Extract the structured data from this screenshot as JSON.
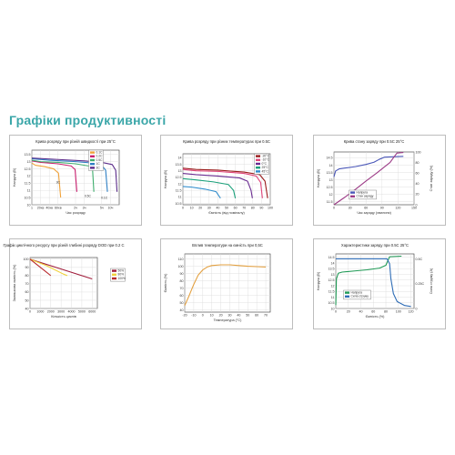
{
  "page": {
    "title": "Графіки продуктивності"
  },
  "chart_data": [
    {
      "id": "p1",
      "type": "line",
      "title": "Крива розряду при різній швидкості при 25°C",
      "xlabel": "Час розряду",
      "ylabel": "Напруга (В)",
      "x_tick_labels": [
        "1",
        "20хв",
        "40хв",
        "60хв",
        "2ч",
        "3ч",
        "5ч",
        "10ч"
      ],
      "x_tick_index": [
        0,
        1,
        2,
        3,
        5,
        6,
        8,
        9
      ],
      "y_ticks": [
        10.0,
        10.5,
        11.0,
        11.5,
        12.0,
        12.5,
        13.0,
        13.5
      ],
      "ylim": [
        10.0,
        13.8
      ],
      "xlim": [
        0,
        10
      ],
      "legend": [
        "0.1C",
        "0.2C",
        "0.5C",
        "1C",
        "3C"
      ],
      "annotations": [
        {
          "text": "3C",
          "x": 3.0,
          "y": 11.5
        },
        {
          "text": "0.5C",
          "x": 6.4,
          "y": 10.55
        },
        {
          "text": "0.1C",
          "x": 8.3,
          "y": 10.4
        }
      ],
      "grid": true,
      "legend_position": "top-right",
      "series": [
        {
          "color": "#f0a23a",
          "points": [
            [
              0,
              12.9
            ],
            [
              0.4,
              12.75
            ],
            [
              1.5,
              12.65
            ],
            [
              2.5,
              12.5
            ],
            [
              3.05,
              12.2
            ],
            [
              3.3,
              10.5
            ]
          ]
        },
        {
          "color": "#c81e6e",
          "points": [
            [
              0,
              13.05
            ],
            [
              1,
              12.95
            ],
            [
              3,
              12.85
            ],
            [
              4.5,
              12.7
            ],
            [
              4.95,
              12.45
            ],
            [
              5.15,
              10.9
            ]
          ]
        },
        {
          "color": "#3fae6e",
          "points": [
            [
              0,
              13.1
            ],
            [
              1,
              13.0
            ],
            [
              3,
              12.95
            ],
            [
              5,
              12.85
            ],
            [
              6.5,
              12.7
            ],
            [
              6.95,
              12.45
            ],
            [
              7.1,
              10.9
            ]
          ]
        },
        {
          "color": "#2e7fc4",
          "points": [
            [
              0,
              13.2
            ],
            [
              2,
              13.1
            ],
            [
              5,
              13.0
            ],
            [
              7,
              12.9
            ],
            [
              8.0,
              12.75
            ],
            [
              8.45,
              12.4
            ],
            [
              8.65,
              10.9
            ]
          ]
        },
        {
          "color": "#5b2c8a",
          "points": [
            [
              0,
              13.25
            ],
            [
              3,
              13.15
            ],
            [
              6,
              13.05
            ],
            [
              8,
              12.95
            ],
            [
              9.2,
              12.8
            ],
            [
              9.6,
              12.4
            ],
            [
              9.75,
              10.9
            ]
          ]
        }
      ]
    },
    {
      "id": "p2",
      "type": "line",
      "title": "Крива розряду при різних температурах при 0.5C",
      "xlabel": "Ємність (від номіналу)",
      "ylabel": "Напруга (В)",
      "x_ticks": [
        0,
        10,
        20,
        30,
        40,
        50,
        60,
        70,
        80,
        90,
        100
      ],
      "y_ticks": [
        10.5,
        11.0,
        11.5,
        12.0,
        12.5,
        13.0,
        13.5,
        14.0
      ],
      "ylim": [
        10.4,
        14.3
      ],
      "xlim": [
        0,
        100
      ],
      "legend": [
        "-20°C",
        "-10°C",
        "0°C",
        "25°C",
        "45°C"
      ],
      "grid": true,
      "legend_position": "top-right",
      "series": [
        {
          "color": "#9a1b1b",
          "points": [
            [
              0,
              13.2
            ],
            [
              15,
              13.1
            ],
            [
              40,
              13.05
            ],
            [
              70,
              12.9
            ],
            [
              88,
              12.7
            ],
            [
              94,
              12.2
            ],
            [
              97,
              10.9
            ]
          ]
        },
        {
          "color": "#e0457b",
          "points": [
            [
              0,
              13.1
            ],
            [
              15,
              13.0
            ],
            [
              40,
              12.95
            ],
            [
              70,
              12.8
            ],
            [
              84,
              12.6
            ],
            [
              89,
              12.1
            ],
            [
              91,
              10.9
            ]
          ]
        },
        {
          "color": "#6a2c91",
          "points": [
            [
              0,
              12.8
            ],
            [
              15,
              12.7
            ],
            [
              40,
              12.6
            ],
            [
              65,
              12.45
            ],
            [
              74,
              12.2
            ],
            [
              78,
              11.5
            ],
            [
              79.5,
              10.9
            ]
          ]
        },
        {
          "color": "#1aa07a",
          "points": [
            [
              0,
              12.4
            ],
            [
              15,
              12.3
            ],
            [
              35,
              12.15
            ],
            [
              52,
              11.95
            ],
            [
              58,
              11.5
            ],
            [
              60,
              10.9
            ]
          ]
        },
        {
          "color": "#2f8ccc",
          "points": [
            [
              0,
              11.8
            ],
            [
              10,
              11.75
            ],
            [
              25,
              11.6
            ],
            [
              38,
              11.4
            ],
            [
              42,
              11.0
            ],
            [
              43,
              10.9
            ]
          ]
        }
      ]
    },
    {
      "id": "p3",
      "type": "line",
      "title": "Крива стану заряду при 0.5C 25°C",
      "xlabel": "Час заряду (хвилини)",
      "ylabel": "Напруга (В)",
      "y2label": "Стан заряду (%)",
      "x_ticks": [
        0,
        30,
        60,
        90,
        120,
        150
      ],
      "y_ticks": [
        11.5,
        12.0,
        12.5,
        13.0,
        13.5,
        14.0,
        14.5
      ],
      "y2_ticks": [
        0,
        20,
        40,
        60,
        80,
        100
      ],
      "ylim": [
        11.3,
        14.9
      ],
      "xlim": [
        0,
        150
      ],
      "legend": [
        "Напруга",
        "Стан заряду"
      ],
      "grid": true,
      "legend_position": "bottom-center",
      "series": [
        {
          "name": "Напруга",
          "color": "#4a57b8",
          "axis": "left",
          "points": [
            [
              0,
              13.2
            ],
            [
              3,
              13.6
            ],
            [
              10,
              13.75
            ],
            [
              20,
              13.8
            ],
            [
              40,
              13.9
            ],
            [
              60,
              14.05
            ],
            [
              75,
              14.2
            ],
            [
              85,
              14.4
            ],
            [
              95,
              14.55
            ],
            [
              130,
              14.6
            ]
          ]
        },
        {
          "name": "Стан заряду",
          "color": "#9c3a86",
          "axis": "right",
          "points": [
            [
              0,
              0
            ],
            [
              20,
              14
            ],
            [
              40,
              29
            ],
            [
              60,
              45
            ],
            [
              80,
              60
            ],
            [
              95,
              72
            ],
            [
              105,
              80
            ],
            [
              112,
              90
            ],
            [
              118,
              98
            ],
            [
              130,
              99
            ]
          ]
        }
      ]
    },
    {
      "id": "p4",
      "type": "line",
      "title": "Графік циклічного ресурсу при різній глибині розряду DOD при 0.2 C",
      "xlabel": "Кількість циклів",
      "ylabel": "Залишкова ємність (%)",
      "x_ticks": [
        0,
        1000,
        2000,
        3000,
        4000,
        5000,
        6000
      ],
      "y_ticks": [
        40,
        50,
        60,
        70,
        80,
        90,
        100
      ],
      "ylim": [
        40,
        102
      ],
      "xlim": [
        0,
        6500
      ],
      "legend": [
        "50%",
        "80%",
        "100%"
      ],
      "grid": true,
      "legend_position": "right",
      "series": [
        {
          "color": "#a01c3a",
          "points": [
            [
              0,
              100
            ],
            [
              1000,
              96
            ],
            [
              2000,
              92
            ],
            [
              3000,
              88
            ],
            [
              4000,
              84
            ],
            [
              5000,
              80
            ],
            [
              6000,
              76
            ]
          ]
        },
        {
          "color": "#f0d13a",
          "points": [
            [
              0,
              100
            ],
            [
              800,
              96
            ],
            [
              1600,
              92
            ],
            [
              2400,
              87
            ],
            [
              3200,
              82
            ],
            [
              3600,
              80
            ]
          ]
        },
        {
          "color": "#b8282c",
          "points": [
            [
              0,
              100
            ],
            [
              500,
              95
            ],
            [
              1000,
              90
            ],
            [
              1500,
              85
            ],
            [
              2000,
              80
            ]
          ]
        }
      ]
    },
    {
      "id": "p5",
      "type": "line",
      "title": "Вплив температури на ємність при 0,5С",
      "xlabel": "Температура (°C)",
      "ylabel": "Ємність (%)",
      "x_ticks": [
        -20,
        -10,
        0,
        10,
        20,
        30,
        40,
        50,
        60,
        70
      ],
      "y_ticks": [
        40,
        50,
        60,
        70,
        80,
        90,
        100,
        110
      ],
      "ylim": [
        37,
        117
      ],
      "xlim": [
        -20,
        75
      ],
      "grid": true,
      "series": [
        {
          "color": "#e3a040",
          "points": [
            [
              -20,
              46
            ],
            [
              -15,
              60
            ],
            [
              -10,
              75
            ],
            [
              -5,
              88
            ],
            [
              0,
              95
            ],
            [
              5,
              99
            ],
            [
              10,
              101
            ],
            [
              20,
              102
            ],
            [
              30,
              102
            ],
            [
              40,
              101
            ],
            [
              50,
              100
            ],
            [
              60,
              99.5
            ],
            [
              70,
              99
            ]
          ]
        }
      ]
    },
    {
      "id": "p6",
      "type": "line",
      "title": "Характеристики заряду при 0.5C 25°C",
      "xlabel": "Ємність (%)",
      "ylabel": "Напруга (В)",
      "y2label": "Сила струму (А)",
      "x_ticks": [
        0,
        20,
        40,
        60,
        80,
        100,
        120
      ],
      "y_ticks": [
        10.0,
        10.5,
        11.0,
        11.5,
        12.0,
        12.5,
        13.0,
        13.5,
        14.0,
        14.5
      ],
      "y2_labels": [
        "0.5C",
        "0.25C",
        "0"
      ],
      "ylim": [
        10.0,
        14.8
      ],
      "xlim": [
        0,
        125
      ],
      "legend": [
        "Напруга",
        "Сила струму"
      ],
      "grid": true,
      "legend_position": "bottom-center",
      "series": [
        {
          "name": "Напруга",
          "color": "#1f9a55",
          "axis": "left",
          "points": [
            [
              0,
              10.3
            ],
            [
              1,
              12.6
            ],
            [
              4,
              13.1
            ],
            [
              10,
              13.2
            ],
            [
              30,
              13.3
            ],
            [
              50,
              13.4
            ],
            [
              70,
              13.55
            ],
            [
              80,
              13.8
            ],
            [
              84,
              14.3
            ],
            [
              86,
              14.55
            ],
            [
              105,
              14.6
            ]
          ]
        },
        {
          "name": "Сила струму",
          "color": "#2f6db6",
          "axis": "right",
          "points": [
            [
              0,
              0.5
            ],
            [
              82,
              0.5
            ],
            [
              86,
              0.45
            ],
            [
              88,
              0.3
            ],
            [
              92,
              0.15
            ],
            [
              98,
              0.07
            ],
            [
              110,
              0.03
            ],
            [
              120,
              0.02
            ]
          ]
        }
      ]
    }
  ]
}
